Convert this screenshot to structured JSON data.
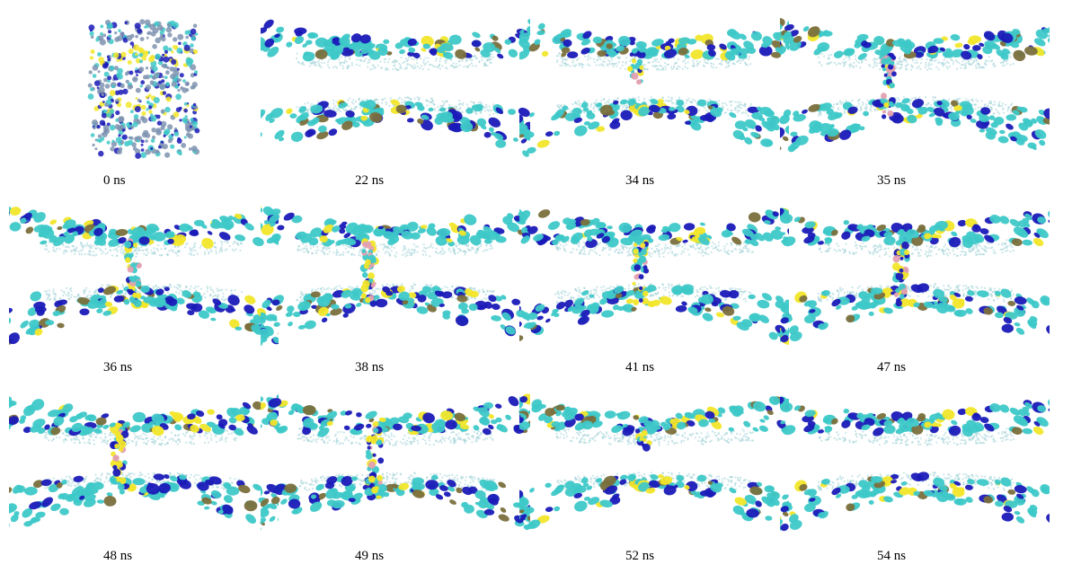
{
  "figure": {
    "colors": {
      "tail": "#9ccfd6",
      "head_cyan": "#3ec8c8",
      "head_blue": "#1a1ab8",
      "head_olive": "#7a6f3c",
      "head_yellow": "#f2e62a",
      "head_pink": "#e3a0b0"
    },
    "frames": [
      {
        "label": "0 ns",
        "kind": "cube"
      },
      {
        "label": "22 ns",
        "kind": "bilayer",
        "stalk": 0
      },
      {
        "label": "34 ns",
        "kind": "bilayer",
        "stalk": 0.45
      },
      {
        "label": "35 ns",
        "kind": "bilayer",
        "stalk": 1
      },
      {
        "label": "36 ns",
        "kind": "bilayer",
        "stalk": 1
      },
      {
        "label": "38 ns",
        "kind": "bilayer",
        "stalk": 1
      },
      {
        "label": "41 ns",
        "kind": "bilayer",
        "stalk": 1
      },
      {
        "label": "47 ns",
        "kind": "bilayer",
        "stalk": 1
      },
      {
        "label": "48 ns",
        "kind": "bilayer",
        "stalk": 1
      },
      {
        "label": "49 ns",
        "kind": "bilayer",
        "stalk": 1
      },
      {
        "label": "52 ns",
        "kind": "bilayer",
        "stalk": 0.35
      },
      {
        "label": "54 ns",
        "kind": "bilayer",
        "stalk": 0
      }
    ]
  }
}
